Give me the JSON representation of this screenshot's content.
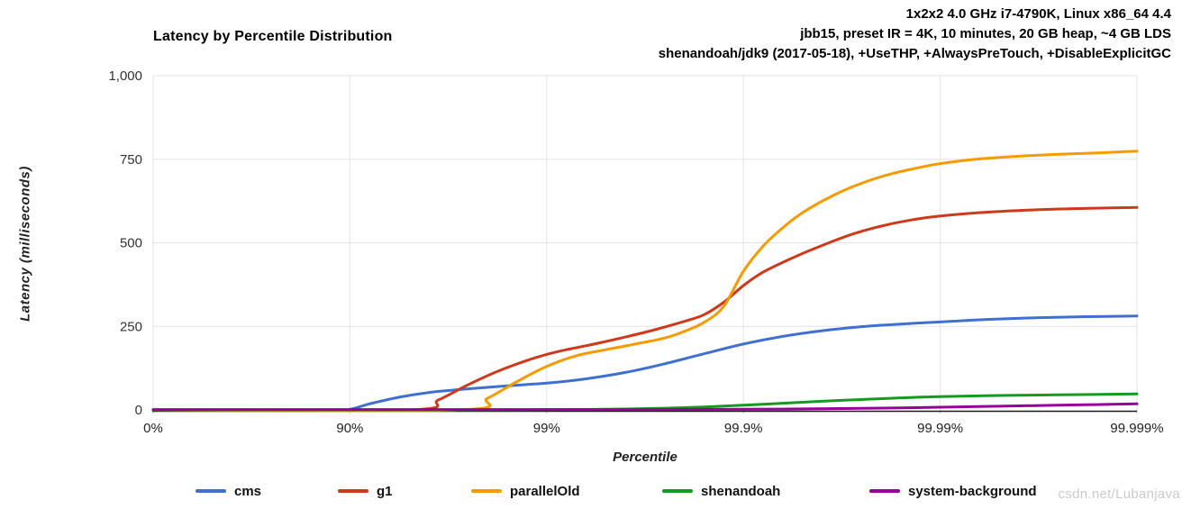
{
  "header": {
    "lines": [
      "1x2x2 4.0 GHz i7-4790K, Linux x86_64 4.4",
      "jbb15, preset IR = 4K, 10 minutes, 20 GB heap, ~4 GB LDS",
      "shenandoah/jdk9 (2017-05-18), +UseTHP, +AlwaysPreTouch, +DisableExplicitGC"
    ]
  },
  "chart_data": {
    "type": "line",
    "title": "Latency by Percentile Distribution",
    "xlabel": "Percentile",
    "ylabel": "Latency (milliseconds)",
    "x_axis": {
      "scale": "percentile-nines (log)",
      "tick_labels": [
        "0%",
        "90%",
        "99%",
        "99.9%",
        "99.99%",
        "99.999%"
      ],
      "tick_nines": [
        0,
        1,
        2,
        3,
        4,
        5
      ]
    },
    "y_axis": {
      "min": 0,
      "max": 1000,
      "tick_values": [
        0,
        250,
        500,
        750,
        1000
      ],
      "tick_labels": [
        "0",
        "250",
        "500",
        "750",
        "1,000"
      ],
      "grid": true
    },
    "legend_position": "bottom",
    "series": [
      {
        "name": "cms",
        "color": "#4070CF",
        "points_nines_ms": [
          [
            0,
            0
          ],
          [
            0.9,
            0
          ],
          [
            1.0,
            2
          ],
          [
            1.1,
            18
          ],
          [
            1.25,
            38
          ],
          [
            1.4,
            52
          ],
          [
            1.6,
            63
          ],
          [
            1.8,
            72
          ],
          [
            2.0,
            80
          ],
          [
            2.2,
            93
          ],
          [
            2.4,
            112
          ],
          [
            2.6,
            138
          ],
          [
            2.8,
            168
          ],
          [
            3.0,
            197
          ],
          [
            3.2,
            220
          ],
          [
            3.4,
            237
          ],
          [
            3.6,
            249
          ],
          [
            3.8,
            257
          ],
          [
            4.0,
            263
          ],
          [
            4.25,
            271
          ],
          [
            4.5,
            276
          ],
          [
            4.75,
            279
          ],
          [
            5.0,
            281
          ]
        ]
      },
      {
        "name": "g1",
        "color": "#CE391B",
        "points_nines_ms": [
          [
            0,
            0
          ],
          [
            1.3,
            0
          ],
          [
            1.45,
            30
          ],
          [
            1.6,
            75
          ],
          [
            1.75,
            115
          ],
          [
            1.9,
            148
          ],
          [
            2.0,
            166
          ],
          [
            2.1,
            180
          ],
          [
            2.25,
            198
          ],
          [
            2.4,
            218
          ],
          [
            2.55,
            240
          ],
          [
            2.7,
            265
          ],
          [
            2.8,
            285
          ],
          [
            2.9,
            322
          ],
          [
            3.0,
            372
          ],
          [
            3.1,
            412
          ],
          [
            3.25,
            455
          ],
          [
            3.4,
            492
          ],
          [
            3.55,
            525
          ],
          [
            3.7,
            550
          ],
          [
            3.85,
            568
          ],
          [
            4.0,
            580
          ],
          [
            4.25,
            592
          ],
          [
            4.5,
            599
          ],
          [
            4.75,
            603
          ],
          [
            5.0,
            606
          ]
        ]
      },
      {
        "name": "parallelOld",
        "color": "#F59B00",
        "points_nines_ms": [
          [
            0,
            0
          ],
          [
            1.55,
            0
          ],
          [
            1.7,
            35
          ],
          [
            1.85,
            85
          ],
          [
            2.0,
            130
          ],
          [
            2.15,
            162
          ],
          [
            2.3,
            180
          ],
          [
            2.45,
            197
          ],
          [
            2.6,
            215
          ],
          [
            2.7,
            235
          ],
          [
            2.8,
            262
          ],
          [
            2.9,
            310
          ],
          [
            3.0,
            415
          ],
          [
            3.1,
            490
          ],
          [
            3.2,
            545
          ],
          [
            3.3,
            590
          ],
          [
            3.45,
            640
          ],
          [
            3.6,
            678
          ],
          [
            3.75,
            706
          ],
          [
            3.9,
            726
          ],
          [
            4.0,
            737
          ],
          [
            4.2,
            751
          ],
          [
            4.4,
            759
          ],
          [
            4.6,
            765
          ],
          [
            4.8,
            769
          ],
          [
            5.0,
            774
          ]
        ]
      },
      {
        "name": "shenandoah",
        "color": "#149B1F",
        "points_nines_ms": [
          [
            0,
            0
          ],
          [
            1.5,
            0
          ],
          [
            2.0,
            1
          ],
          [
            2.3,
            2
          ],
          [
            2.6,
            5
          ],
          [
            2.8,
            9
          ],
          [
            3.0,
            14
          ],
          [
            3.2,
            20
          ],
          [
            3.4,
            26
          ],
          [
            3.6,
            31
          ],
          [
            3.8,
            36
          ],
          [
            4.0,
            40
          ],
          [
            4.3,
            43
          ],
          [
            4.6,
            45
          ],
          [
            5.0,
            48
          ]
        ]
      },
      {
        "name": "system-background",
        "color": "#990099",
        "points_nines_ms": [
          [
            0,
            1
          ],
          [
            1.0,
            1
          ],
          [
            2.0,
            1
          ],
          [
            2.5,
            1
          ],
          [
            3.0,
            2
          ],
          [
            3.5,
            4
          ],
          [
            3.8,
            6
          ],
          [
            4.0,
            8
          ],
          [
            4.3,
            11
          ],
          [
            4.6,
            14
          ],
          [
            4.8,
            16
          ],
          [
            5.0,
            18
          ]
        ]
      }
    ]
  },
  "watermark": {
    "text": "csdn.net/Lubanjava",
    "color": "#cbcbcb"
  }
}
